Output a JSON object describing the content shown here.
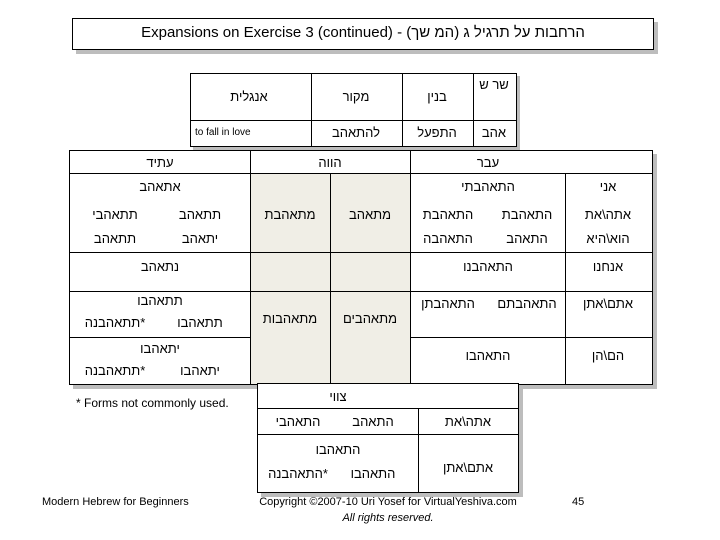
{
  "title": "Expansions on Exercise 3 (continued) - (המ שך) הרחבות על תרגיל ג",
  "root_table": {
    "headers": {
      "root": "שר ש",
      "binyan": "בנין",
      "infinitive": "מקור",
      "english": "אנגלית"
    },
    "row": {
      "root": "אהב",
      "binyan": "התפעל",
      "infinitive": "להתאהב",
      "english": "to fall in love"
    }
  },
  "conjugation": {
    "tense_headers": {
      "past": "עבר",
      "present": "הווה",
      "future": "עתיד"
    },
    "persons": {
      "ani": "אני",
      "ata_at": "אתה\\את",
      "hu_hi": "הוא\\היא",
      "anachnu": "אנחנו",
      "atem_aten": "אתם\\אתן",
      "hem_hen": "הם\\הן"
    },
    "past": {
      "ani": "התאהבתי",
      "ata": "התאהבת",
      "at": "התאהבת",
      "hu": "התאהב",
      "hi": "התאהבה",
      "anachnu": "התאהבנו",
      "atem": "התאהבתם",
      "aten": "התאהבתן",
      "hem": "התאהבו"
    },
    "present": {
      "ms": "מתאהב",
      "fs": "מתאהבת",
      "mp": "מתאהבים",
      "fp": "מתאהבות"
    },
    "future": {
      "ani": "אתאהב",
      "ata": "תתאהב",
      "at": "תתאהבי",
      "hu": "יתאהב",
      "hi": "תתאהב",
      "anachnu": "נתאהב",
      "atem_aten_common": "תתאהבו",
      "atem": "תתאהבו",
      "aten": "*תתאהבנה",
      "hem_hen_common": "יתאהבו",
      "hem": "יתאהבו",
      "hen": "*תתאהבנה"
    }
  },
  "imperative": {
    "header": "צווי",
    "ata_at": "אתה\\את",
    "atem_aten": "אתם\\אתן",
    "ata": "התאהב",
    "at": "התאהבי",
    "common_plural": "התאהבו",
    "atem": "התאהבו",
    "aten": "*התאהבנה"
  },
  "note": "* Forms not commonly used.",
  "footer": {
    "left": "Modern Hebrew for Beginners",
    "copyright_line1": "Copyright ©2007-10 Uri Yosef for VirtualYeshiva.com",
    "copyright_line2": "All rights reserved.",
    "page_number": "45"
  }
}
